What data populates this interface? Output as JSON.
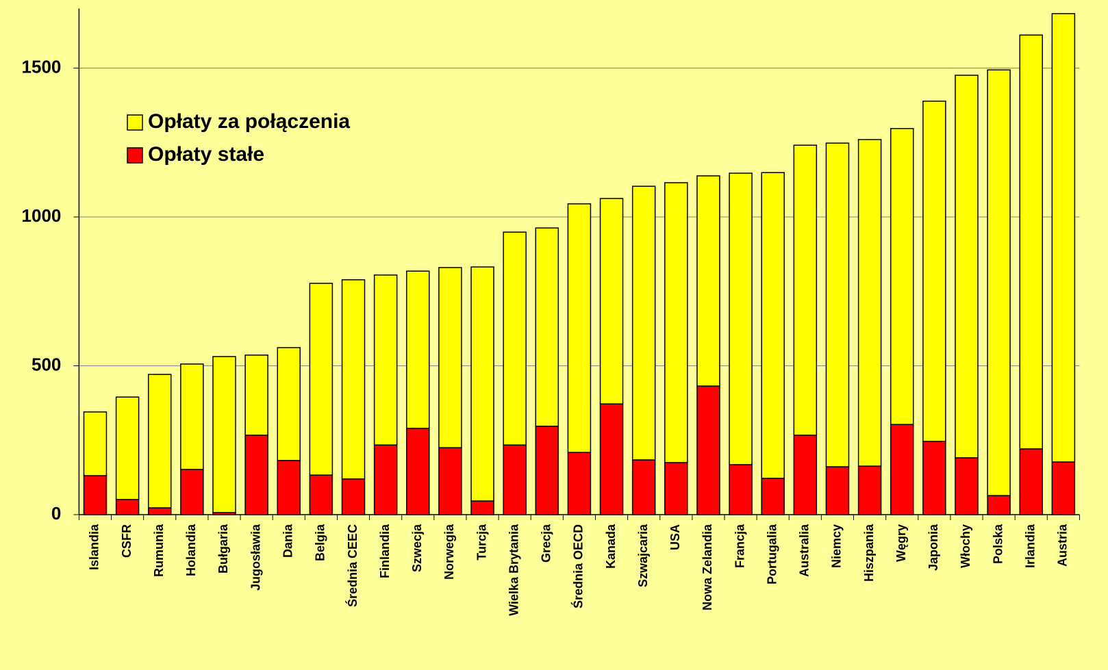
{
  "chart_data": {
    "type": "stacked_bar",
    "categories": [
      "Islandia",
      "CSFR",
      "Rumunia",
      "Holandia",
      "Bułgaria",
      "Jugosławia",
      "Dania",
      "Belgia",
      "Średnia CEEC",
      "Finlandia",
      "Szwecja",
      "Norwegia",
      "Turcja",
      "Wielka Brytania",
      "Grecja",
      "Średnia OECD",
      "Kanada",
      "Szwajcaria",
      "USA",
      "Nowa Zelandia",
      "Francja",
      "Portugalia",
      "Australia",
      "Niemcy",
      "Hiszpania",
      "Węgry",
      "Japonia",
      "Włochy",
      "Polska",
      "Irlandia",
      "Austria"
    ],
    "series": [
      {
        "name": "Opłaty stałe",
        "color": "#ff0000",
        "values": [
          131,
          51,
          23,
          152,
          7,
          267,
          182,
          133,
          120,
          234,
          290,
          225,
          46,
          234,
          297,
          209,
          372,
          184,
          175,
          432,
          168,
          122,
          267,
          161,
          163,
          303,
          246,
          191,
          64,
          221,
          177
        ]
      },
      {
        "name": "Opłaty za połączenia",
        "color": "#ffff00",
        "values": [
          214,
          344,
          448,
          354,
          524,
          269,
          379,
          644,
          669,
          571,
          528,
          605,
          786,
          715,
          666,
          835,
          690,
          919,
          940,
          706,
          979,
          1027,
          974,
          1087,
          1097,
          994,
          1143,
          1285,
          1430,
          1390,
          1506
        ]
      }
    ],
    "ylim": [
      0,
      1700
    ],
    "yticks": [
      0,
      500,
      1000,
      1500
    ],
    "grid": true
  }
}
